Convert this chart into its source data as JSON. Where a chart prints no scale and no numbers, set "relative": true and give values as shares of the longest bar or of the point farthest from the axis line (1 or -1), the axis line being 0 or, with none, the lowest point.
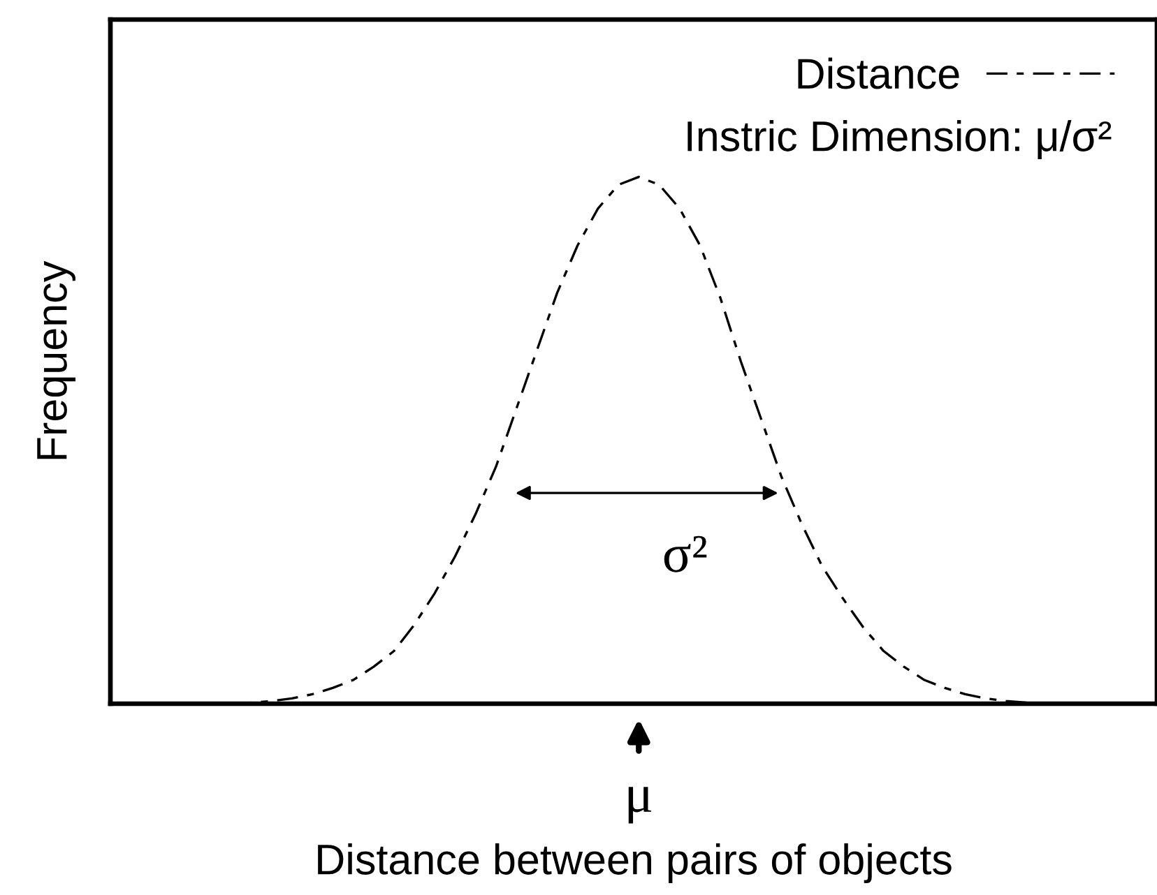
{
  "chart_data": {
    "type": "line",
    "relative": true,
    "xlabel": "Distance between pairs of objects",
    "ylabel": "Frequency",
    "categories": [
      null,
      null,
      null,
      null,
      null,
      null,
      null,
      null,
      null,
      null,
      null,
      null,
      null,
      null,
      null,
      null,
      null,
      null,
      null,
      null,
      null,
      null,
      null,
      null,
      null,
      null,
      null,
      null,
      null,
      null,
      null,
      null,
      null,
      null,
      null,
      null,
      null,
      null,
      null,
      null,
      null
    ],
    "series": [
      {
        "name": "Distance",
        "color": "#000000",
        "values": [
          0,
          0.002,
          0.005,
          0.01,
          0.018,
          0.03,
          0.045,
          0.07,
          0.1,
          0.15,
          0.21,
          0.28,
          0.36,
          0.45,
          0.56,
          0.67,
          0.78,
          0.87,
          0.94,
          0.985,
          1.0,
          0.985,
          0.94,
          0.87,
          0.77,
          0.65,
          0.54,
          0.43,
          0.34,
          0.26,
          0.2,
          0.145,
          0.1,
          0.07,
          0.045,
          0.03,
          0.018,
          0.01,
          0.005,
          0.002,
          0
        ]
      }
    ],
    "line_style": "dashed",
    "legend": "top right",
    "annotations": [
      "Instric Dimension: μ/σ²",
      "σ²",
      "μ"
    ]
  }
}
